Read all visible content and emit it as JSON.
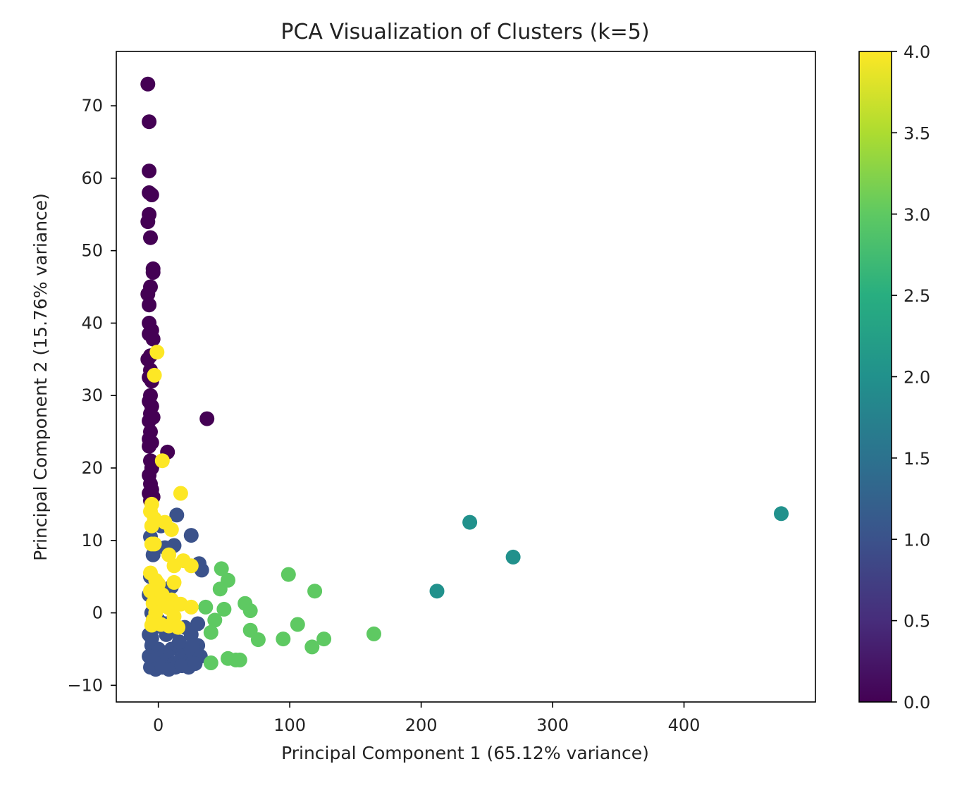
{
  "chart_data": {
    "type": "scatter",
    "title": "PCA Visualization of Clusters (k=5)",
    "xlabel": "Principal Component 1 (65.12% variance)",
    "ylabel": "Principal Component 2 (15.76% variance)",
    "xlim": [
      -32,
      500
    ],
    "ylim": [
      -12.3,
      77.5
    ],
    "xticks": [
      0,
      100,
      200,
      300,
      400
    ],
    "xtick_labels": [
      "0",
      "100",
      "200",
      "300",
      "400"
    ],
    "yticks": [
      -10,
      0,
      10,
      20,
      30,
      40,
      50,
      60,
      70
    ],
    "ytick_labels": [
      "−10",
      "0",
      "10",
      "20",
      "30",
      "40",
      "50",
      "60",
      "70"
    ],
    "grid": false,
    "colorbar": {
      "min": 0.0,
      "max": 4.0,
      "ticks": [
        0.0,
        0.5,
        1.0,
        1.5,
        2.0,
        2.5,
        3.0,
        3.5,
        4.0
      ],
      "tick_labels": [
        "0.0",
        "0.5",
        "1.0",
        "1.5",
        "2.0",
        "2.5",
        "3.0",
        "3.5",
        "4.0"
      ],
      "colormap": "viridis",
      "colormap_stops": [
        "#440154",
        "#472d7b",
        "#3b528b",
        "#2c728e",
        "#21918c",
        "#28ae80",
        "#5ec962",
        "#addc30",
        "#fde725"
      ]
    },
    "series": [
      {
        "cluster": 0,
        "color": "#440154",
        "points": [
          [
            -8,
            73
          ],
          [
            -7,
            67.8
          ],
          [
            -7,
            61
          ],
          [
            -7,
            58
          ],
          [
            -5,
            57.7
          ],
          [
            -7,
            55
          ],
          [
            -8,
            54
          ],
          [
            -6,
            51.8
          ],
          [
            -4,
            47.5
          ],
          [
            -4,
            47
          ],
          [
            -6,
            45
          ],
          [
            -8,
            44
          ],
          [
            -7,
            42.5
          ],
          [
            -7,
            40
          ],
          [
            -5,
            39
          ],
          [
            -7,
            38.5
          ],
          [
            -4,
            37.8
          ],
          [
            -6,
            35.5
          ],
          [
            -8,
            35
          ],
          [
            -6,
            33.5
          ],
          [
            -7,
            32.5
          ],
          [
            -5,
            32
          ],
          [
            -6,
            30
          ],
          [
            -7,
            29.2
          ],
          [
            -5,
            28.5
          ],
          [
            -6,
            27.5
          ],
          [
            -4,
            27
          ],
          [
            -7,
            26.5
          ],
          [
            -6,
            25
          ],
          [
            -7,
            24
          ],
          [
            -5,
            23.5
          ],
          [
            -7,
            23
          ],
          [
            -6,
            21
          ],
          [
            -5,
            20
          ],
          [
            -7,
            19
          ],
          [
            -6,
            17.8
          ],
          [
            -5,
            17
          ],
          [
            -7,
            16.5
          ],
          [
            -4,
            16
          ],
          [
            -6,
            15.5
          ],
          [
            37,
            26.8
          ],
          [
            7,
            22.2
          ]
        ]
      },
      {
        "cluster": 1,
        "color": "#3b528b",
        "points": [
          [
            14,
            13.5
          ],
          [
            25,
            10.7
          ],
          [
            12,
            9.3
          ],
          [
            5,
            9
          ],
          [
            -4,
            8
          ],
          [
            2,
            12
          ],
          [
            -6,
            10.5
          ],
          [
            31,
            6.8
          ],
          [
            33,
            5.9
          ],
          [
            -6,
            5
          ],
          [
            10,
            3.6
          ],
          [
            -7,
            2.5
          ],
          [
            -5,
            0
          ],
          [
            0,
            -1
          ],
          [
            5,
            -1.5
          ],
          [
            10,
            -2.5
          ],
          [
            20,
            -2
          ],
          [
            25,
            -3
          ],
          [
            30,
            -1.5
          ],
          [
            -7,
            -3
          ],
          [
            -5,
            -4.5
          ],
          [
            0,
            -5
          ],
          [
            5,
            -5.5
          ],
          [
            10,
            -5
          ],
          [
            15,
            -4.5
          ],
          [
            20,
            -5.5
          ],
          [
            25,
            -5
          ],
          [
            30,
            -4.5
          ],
          [
            -7,
            -6
          ],
          [
            -3,
            -6.5
          ],
          [
            2,
            -7
          ],
          [
            7,
            -6.5
          ],
          [
            12,
            -7
          ],
          [
            17,
            -6.5
          ],
          [
            22,
            -7
          ],
          [
            27,
            -6.5
          ],
          [
            32,
            -6
          ],
          [
            -6,
            -7.5
          ],
          [
            -2,
            -7.8
          ],
          [
            3,
            -7.5
          ],
          [
            8,
            -7.8
          ],
          [
            13,
            -7.5
          ],
          [
            18,
            -7.3
          ],
          [
            23,
            -7.5
          ],
          [
            28,
            -7
          ],
          [
            -5,
            -3.5
          ],
          [
            6,
            -3
          ],
          [
            16,
            -4
          ],
          [
            26,
            -4.5
          ],
          [
            -3,
            -2
          ],
          [
            11,
            -1
          ]
        ]
      },
      {
        "cluster": 2,
        "color": "#21918c",
        "points": [
          [
            474,
            13.7
          ],
          [
            237,
            12.5
          ],
          [
            270,
            7.7
          ],
          [
            212,
            3
          ]
        ]
      },
      {
        "cluster": 3,
        "color": "#5ec962",
        "points": [
          [
            48,
            6.1
          ],
          [
            99,
            5.3
          ],
          [
            53,
            4.5
          ],
          [
            47,
            3.3
          ],
          [
            119,
            3
          ],
          [
            36,
            0.8
          ],
          [
            50,
            0.5
          ],
          [
            66,
            1.3
          ],
          [
            70,
            0.3
          ],
          [
            43,
            -1
          ],
          [
            106,
            -1.6
          ],
          [
            70,
            -2.4
          ],
          [
            40,
            -2.7
          ],
          [
            164,
            -2.9
          ],
          [
            126,
            -3.6
          ],
          [
            95,
            -3.6
          ],
          [
            76,
            -3.7
          ],
          [
            117,
            -4.7
          ],
          [
            53,
            -6.3
          ],
          [
            59,
            -6.5
          ],
          [
            62,
            -6.5
          ],
          [
            40,
            -6.9
          ]
        ]
      },
      {
        "cluster": 4,
        "color": "#fde725",
        "points": [
          [
            -1,
            36
          ],
          [
            -3,
            32.8
          ],
          [
            3,
            21
          ],
          [
            17,
            16.5
          ],
          [
            -5,
            15
          ],
          [
            -6,
            14
          ],
          [
            -3,
            13
          ],
          [
            5,
            12.5
          ],
          [
            10,
            11.5
          ],
          [
            -5,
            12
          ],
          [
            -5,
            9.5
          ],
          [
            -3,
            9.5
          ],
          [
            8,
            8
          ],
          [
            19,
            7.2
          ],
          [
            25,
            6.5
          ],
          [
            12,
            6.5
          ],
          [
            -6,
            5.5
          ],
          [
            -2,
            4.5
          ],
          [
            0,
            4
          ],
          [
            12,
            4.2
          ],
          [
            -6,
            3
          ],
          [
            3,
            2.5
          ],
          [
            10,
            1.8
          ],
          [
            -4,
            1.3
          ],
          [
            3,
            1
          ],
          [
            8,
            0.7
          ],
          [
            17,
            1.2
          ],
          [
            25,
            0.8
          ],
          [
            -2,
            0
          ],
          [
            12,
            -0.5
          ],
          [
            -4,
            -1
          ],
          [
            2,
            -1.6
          ],
          [
            8,
            -1.8
          ],
          [
            15,
            -2
          ],
          [
            -5,
            -1.7
          ]
        ]
      }
    ]
  }
}
